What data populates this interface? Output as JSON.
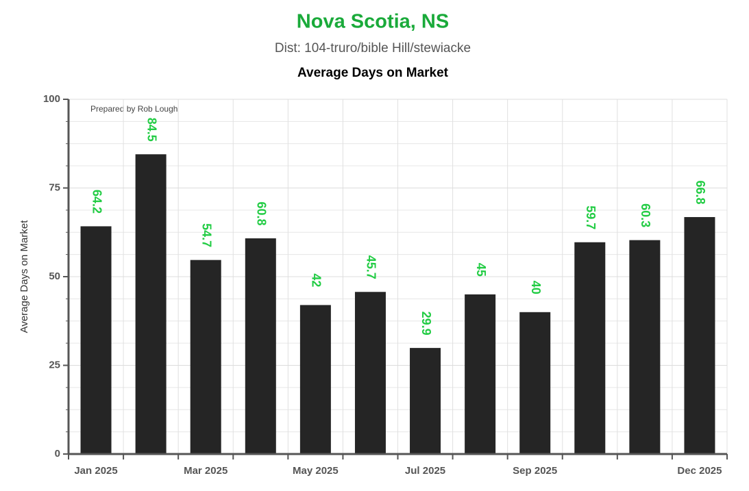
{
  "chart_data": {
    "type": "bar",
    "title": "Nova Scotia, NS",
    "subtitle": "Dist: 104-truro/bible Hill/stewiacke",
    "chart_title": "Average Days on Market",
    "y_label": "Average Days on Market",
    "annotation": "Prepared by Rob Lough",
    "categories": [
      "Jan 2025",
      null,
      "Mar 2025",
      null,
      "May 2025",
      null,
      "Jul 2025",
      null,
      "Sep 2025",
      null,
      null,
      "Dec 2025"
    ],
    "values": [
      64.2,
      84.5,
      54.7,
      60.8,
      42,
      45.7,
      29.9,
      45,
      40,
      59.7,
      60.3,
      66.8
    ],
    "color": "#252525",
    "label_color": "#22cc44",
    "ylim": [
      0,
      100
    ],
    "yticks": [
      0,
      25,
      50,
      75,
      100
    ],
    "grid": true
  }
}
